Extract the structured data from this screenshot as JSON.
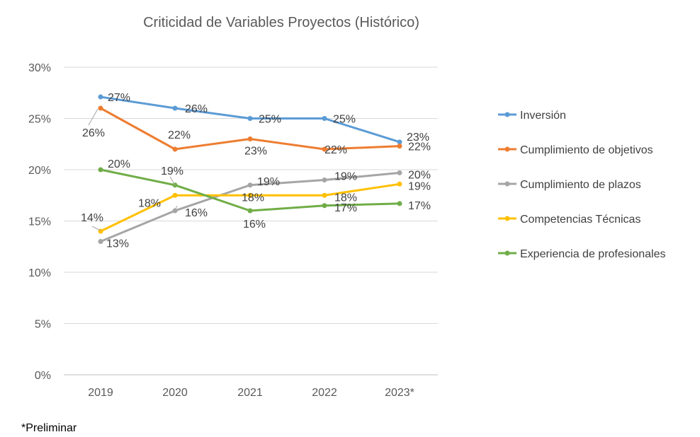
{
  "chart_data": {
    "type": "line",
    "title": "Criticidad de Variables Proyectos (Histórico)",
    "categories": [
      "2019",
      "2020",
      "2021",
      "2022",
      "2023*"
    ],
    "y_ticks": [
      "0%",
      "5%",
      "10%",
      "15%",
      "20%",
      "25%",
      "30%"
    ],
    "ylim": [
      0,
      30
    ],
    "grid": true,
    "legend_position": "right",
    "series": [
      {
        "name": "Inversión",
        "color": "#5B9BD5",
        "values": [
          27.1,
          26.0,
          25.0,
          25.0,
          22.7
        ],
        "labels": [
          "27%",
          "26%",
          "25%",
          "25%",
          "23%"
        ]
      },
      {
        "name": "Cumplimiento de objetivos",
        "color": "#ED7D31",
        "values": [
          26.0,
          22.0,
          23.0,
          22.0,
          22.3
        ],
        "labels": [
          "26%",
          "22%",
          "23%",
          "22%",
          "22%"
        ]
      },
      {
        "name": "Cumplimiento de plazos",
        "color": "#A5A5A5",
        "values": [
          13.0,
          16.0,
          18.5,
          19.0,
          19.7
        ],
        "labels": [
          "13%",
          "16%",
          "19%",
          "19%",
          "20%"
        ]
      },
      {
        "name": "Competencias Técnicas",
        "color": "#FFC000",
        "values": [
          14.0,
          17.5,
          17.5,
          17.5,
          18.6
        ],
        "labels": [
          "14%",
          "18%",
          "18%",
          "18%",
          "19%"
        ]
      },
      {
        "name": "Experiencia de profesionales",
        "color": "#70AD47",
        "values": [
          20.0,
          18.5,
          16.0,
          16.5,
          16.7
        ],
        "labels": [
          "20%",
          "19%",
          "16%",
          "17%",
          "17%"
        ]
      }
    ]
  },
  "footnote": "*Preliminar"
}
